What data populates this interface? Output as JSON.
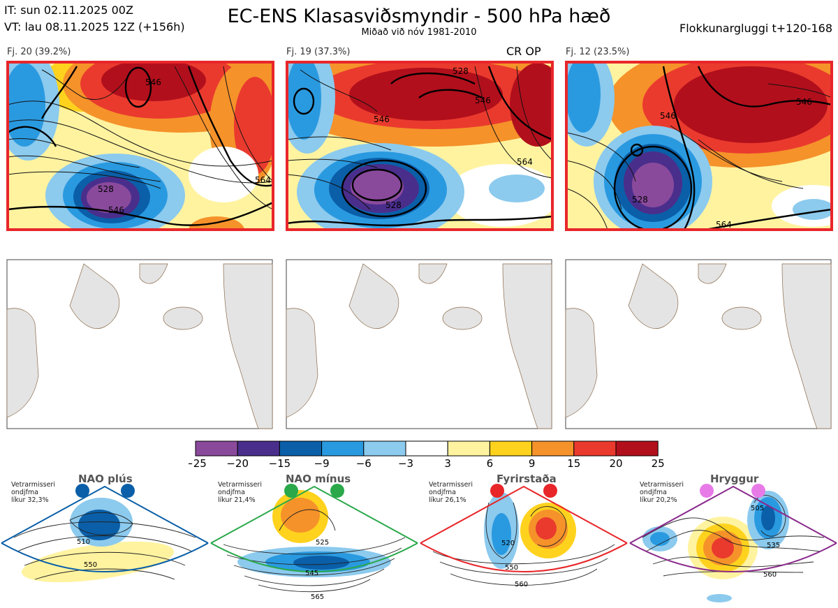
{
  "header": {
    "it_line": "IT: sun 02.11.2025 00Z",
    "vt_line": "VT: lau 08.11.2025 12Z  (+156h)",
    "title": "EC-ENS Klasasviðsmyndir - 500 hPa hæð",
    "subtitle": "Miðað við nóv 1981-2010",
    "window": "Flokkunargluggi t+120-168"
  },
  "panels": [
    {
      "label": "Fj. 20 (39.2%)",
      "contours": [
        "546",
        "528",
        "546",
        "564"
      ],
      "extra": ""
    },
    {
      "label": "Fj. 19 (37.3%)",
      "contours": [
        "528",
        "546",
        "546",
        "528",
        "564"
      ],
      "extra": "CR OP"
    },
    {
      "label": "Fj. 12 (23.5%)",
      "contours": [
        "546",
        "528",
        "546",
        "564"
      ],
      "extra": ""
    }
  ],
  "colorbar": {
    "ticks": [
      "−25",
      "−20",
      "−15",
      "−9",
      "−6",
      "−3",
      "3",
      "6",
      "9",
      "15",
      "20",
      "25"
    ],
    "colors": [
      "#8a4a9c",
      "#4a2e8c",
      "#0a5fa8",
      "#2a9ae0",
      "#8ccaee",
      "#ffffff",
      "#fff3a0",
      "#ffd21e",
      "#f5922a",
      "#ea3a2e",
      "#b20f1c"
    ]
  },
  "regimes": [
    {
      "name": "NAO plús",
      "info": [
        "Vetrarmisseri",
        "ondjfma",
        "líkur 32,3%"
      ],
      "color": "#0a5fa8",
      "labels": [
        "510",
        "550"
      ]
    },
    {
      "name": "NAO mínus",
      "info": [
        "Vetrarmisseri",
        "ondjfma",
        "líkur 21,4%"
      ],
      "color": "#2aa84a",
      "labels": [
        "525",
        "545",
        "565"
      ]
    },
    {
      "name": "Fyrirstaða",
      "info": [
        "Vetrarmisseri",
        "ondjfma",
        "líkur 26,1%"
      ],
      "color": "#e8262a",
      "labels": [
        "520",
        "550",
        "560"
      ]
    },
    {
      "name": "Hryggur",
      "info": [
        "Vetrarmisseri",
        "ondjfma",
        "líkur 20,2%"
      ],
      "color": "#e87ae8",
      "labels": [
        "505",
        "535",
        "560"
      ]
    }
  ]
}
